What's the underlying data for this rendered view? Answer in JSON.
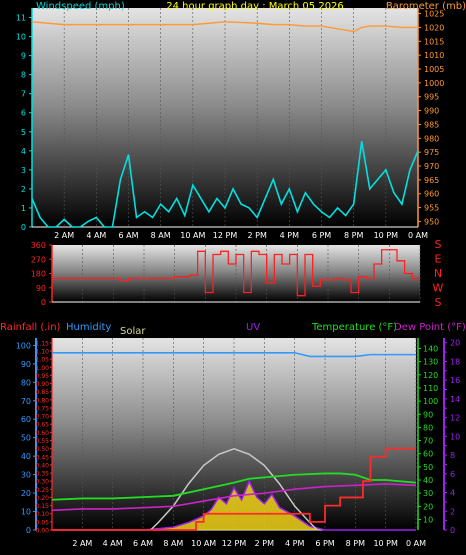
{
  "header": {
    "wind_label": "Windspeed (mph)",
    "title": "24 hour graph day : March 05 2026",
    "baro_label": "Barometer (mb)"
  },
  "colors": {
    "wind": "#00e0e0",
    "baro": "#ff9933",
    "title": "#ffff00",
    "direction": "#ff2020",
    "rain": "#ff2a2a",
    "humidity": "#3399ff",
    "solar": "#c8c8c8",
    "uv": "#a020f0",
    "temperature": "#22dd22",
    "dewpoint": "#cc22cc",
    "axis_text": "#ffffff"
  },
  "x_ticks": [
    "2 AM",
    "4 AM",
    "6 AM",
    "8 AM",
    "10 AM",
    "12 PM",
    "2 PM",
    "4 PM",
    "6 PM",
    "8 PM",
    "10 PM",
    "0 AM"
  ],
  "chart_data": [
    {
      "type": "line",
      "title": "24 hour graph day : March 05 2026",
      "x_ticks": [
        "2 AM",
        "4 AM",
        "6 AM",
        "8 AM",
        "10 AM",
        "12 PM",
        "2 PM",
        "4 PM",
        "6 PM",
        "8 PM",
        "10 PM",
        "0 AM"
      ],
      "left_axis": {
        "label": "Windspeed (mph)",
        "ticks": [
          0,
          1,
          2,
          3,
          4,
          5,
          6,
          7,
          8,
          9,
          10,
          11
        ],
        "ylim": [
          0,
          11.5
        ]
      },
      "right_axis": {
        "label": "Barometer (mb)",
        "ticks": [
          950,
          955,
          960,
          965,
          970,
          975,
          980,
          985,
          990,
          995,
          1000,
          1005,
          1010,
          1015,
          1020,
          1025
        ],
        "ylim": [
          948,
          1027
        ]
      },
      "series": [
        {
          "name": "Windspeed (mph)",
          "axis": "left",
          "x": [
            0,
            0.5,
            1,
            1.5,
            2,
            2.5,
            3,
            3.5,
            4,
            4.5,
            5,
            5.5,
            6,
            6.5,
            7,
            7.5,
            8,
            8.5,
            9,
            9.5,
            10,
            10.5,
            11,
            11.5,
            12,
            12.5,
            13,
            13.5,
            14,
            14.5,
            15,
            15.5,
            16,
            16.5,
            17,
            17.5,
            18,
            18.5,
            19,
            19.5,
            20,
            20.5,
            21,
            21.5,
            22,
            22.5,
            23,
            23.5,
            24
          ],
          "values": [
            1.5,
            0.5,
            0,
            0,
            0.4,
            0,
            0,
            0.3,
            0.5,
            0,
            0,
            2.5,
            3.8,
            0.5,
            0.8,
            0.5,
            1.2,
            0.8,
            1.5,
            0.6,
            2.2,
            1.5,
            0.8,
            1.5,
            1.0,
            2.0,
            1.2,
            1.0,
            0.5,
            1.5,
            2.5,
            1.2,
            2.0,
            0.8,
            1.8,
            1.2,
            0.8,
            0.5,
            1.0,
            0.6,
            1.2,
            4.5,
            2.0,
            2.5,
            3.0,
            1.8,
            1.2,
            3.0,
            4.0
          ]
        },
        {
          "name": "Barometer (mb)",
          "axis": "right",
          "x": [
            0,
            1,
            2,
            3,
            4,
            5,
            6,
            7,
            8,
            9,
            10,
            11,
            12,
            13,
            14,
            15,
            16,
            17,
            18,
            19,
            20,
            20.5,
            21,
            22,
            23,
            24
          ],
          "values": [
            1022,
            1021.5,
            1021,
            1021,
            1021,
            1021,
            1021,
            1021,
            1021,
            1021,
            1021,
            1021.5,
            1022,
            1021.8,
            1021.5,
            1021,
            1021,
            1020.5,
            1020.5,
            1019.5,
            1018.5,
            1020,
            1020.5,
            1020.5,
            1020,
            1020
          ]
        }
      ]
    },
    {
      "type": "line",
      "right_axis_labels": [
        "S",
        "E",
        "N",
        "W",
        "S"
      ],
      "y_ticks": [
        0,
        90,
        180,
        270,
        360
      ],
      "ylim": [
        0,
        360
      ],
      "series": [
        {
          "name": "Wind direction",
          "x": [
            0,
            1,
            2,
            3,
            4,
            4.5,
            5,
            6,
            7,
            8,
            9,
            9.5,
            10,
            10.5,
            11,
            11.5,
            12,
            12.5,
            13,
            13.5,
            14,
            14.5,
            15,
            15.5,
            16,
            16.5,
            17,
            17.5,
            18,
            18.5,
            19,
            19.5,
            20,
            20.5,
            21,
            21.5,
            22,
            22.5,
            23,
            23.5,
            24
          ],
          "values": [
            150,
            150,
            150,
            150,
            150,
            135,
            150,
            150,
            150,
            160,
            170,
            320,
            60,
            300,
            320,
            240,
            300,
            60,
            320,
            300,
            120,
            300,
            240,
            300,
            40,
            300,
            100,
            140,
            140,
            150,
            140,
            60,
            160,
            150,
            240,
            330,
            330,
            260,
            180,
            150,
            150
          ]
        }
      ]
    },
    {
      "type": "line",
      "legend": [
        "Rainfall (.in)",
        "Humidity",
        "Solar",
        "UV",
        "Temperature (°F)",
        "Dew Point (°F)"
      ],
      "rain_axis": {
        "ticks": [
          0,
          0.05,
          0.1,
          0.15,
          0.2,
          0.25,
          0.3,
          0.35,
          0.4,
          0.45,
          0.5,
          0.55,
          0.6,
          0.65,
          0.7,
          0.75,
          0.8,
          0.85,
          0.9,
          0.95,
          1,
          1.05,
          1.1,
          1.15
        ],
        "ylim": [
          0,
          1.18
        ]
      },
      "percent_axis": {
        "ticks": [
          0,
          10,
          20,
          30,
          40,
          50,
          60,
          70,
          80,
          90,
          100
        ],
        "ylim": [
          0,
          104
        ]
      },
      "temp_axis": {
        "ticks": [
          10,
          20,
          30,
          40,
          50,
          60,
          70,
          80,
          90,
          100,
          110,
          120,
          130,
          140
        ],
        "ylim": [
          2,
          148
        ]
      },
      "uv_axis": {
        "ticks": [
          0,
          1,
          2,
          3,
          4,
          5,
          6,
          7,
          8,
          9,
          10,
          11,
          12,
          13,
          14,
          15,
          16,
          17,
          18,
          19,
          20
        ],
        "ylim": [
          0,
          20.5
        ]
      },
      "series": [
        {
          "name": "Rainfall (.in)",
          "axis": "rain",
          "x": [
            0,
            6,
            8,
            9.5,
            10,
            14,
            16,
            17,
            18,
            19,
            20,
            20.5,
            21,
            22,
            23,
            24
          ],
          "values": [
            0,
            0,
            0,
            0.05,
            0.1,
            0.1,
            0.1,
            0.05,
            0.15,
            0.2,
            0.2,
            0.3,
            0.45,
            0.5,
            0.5,
            0.5
          ]
        },
        {
          "name": "Humidity",
          "axis": "percent",
          "x": [
            0,
            4,
            8,
            12,
            16,
            17,
            18,
            20,
            21,
            22,
            24
          ],
          "values": [
            96,
            96,
            96,
            96,
            96,
            94,
            94,
            94,
            95,
            95,
            95
          ]
        },
        {
          "name": "Solar",
          "axis": "percent",
          "x": [
            6.5,
            7,
            8,
            9,
            10,
            11,
            12,
            13,
            14,
            15,
            16,
            17,
            17.5
          ],
          "values": [
            0,
            4,
            13,
            25,
            35,
            41,
            44,
            41,
            35,
            25,
            13,
            4,
            0
          ]
        },
        {
          "name": "UV",
          "axis": "uv",
          "x": [
            0,
            2,
            4,
            6,
            8,
            9,
            10,
            10.5,
            11,
            11.5,
            12,
            12.5,
            13,
            13.5,
            14,
            14.5,
            15,
            16,
            17,
            18,
            20,
            22,
            24
          ],
          "values": [
            0,
            0,
            0,
            0,
            0.3,
            0.8,
            1.5,
            2.2,
            3.5,
            2.8,
            4.5,
            3.2,
            5.2,
            3.5,
            2.8,
            3.8,
            2.4,
            1.5,
            0.4,
            0,
            0,
            0,
            0
          ]
        },
        {
          "name": "Temperature (°F)",
          "axis": "temp",
          "x": [
            0,
            2,
            4,
            6,
            8,
            10,
            12,
            13,
            14,
            16,
            18,
            19,
            20,
            21,
            22,
            24
          ],
          "values": [
            25,
            26,
            26,
            27,
            28,
            33,
            38,
            41,
            42,
            44,
            45,
            45,
            44,
            40,
            40,
            38
          ]
        },
        {
          "name": "Dew Point (°F)",
          "axis": "temp",
          "x": [
            0,
            2,
            4,
            6,
            8,
            10,
            12,
            14,
            16,
            18,
            20,
            22,
            24
          ],
          "values": [
            17,
            18,
            18,
            19,
            20,
            24,
            28,
            30,
            33,
            35,
            36,
            37,
            36
          ]
        }
      ]
    }
  ]
}
